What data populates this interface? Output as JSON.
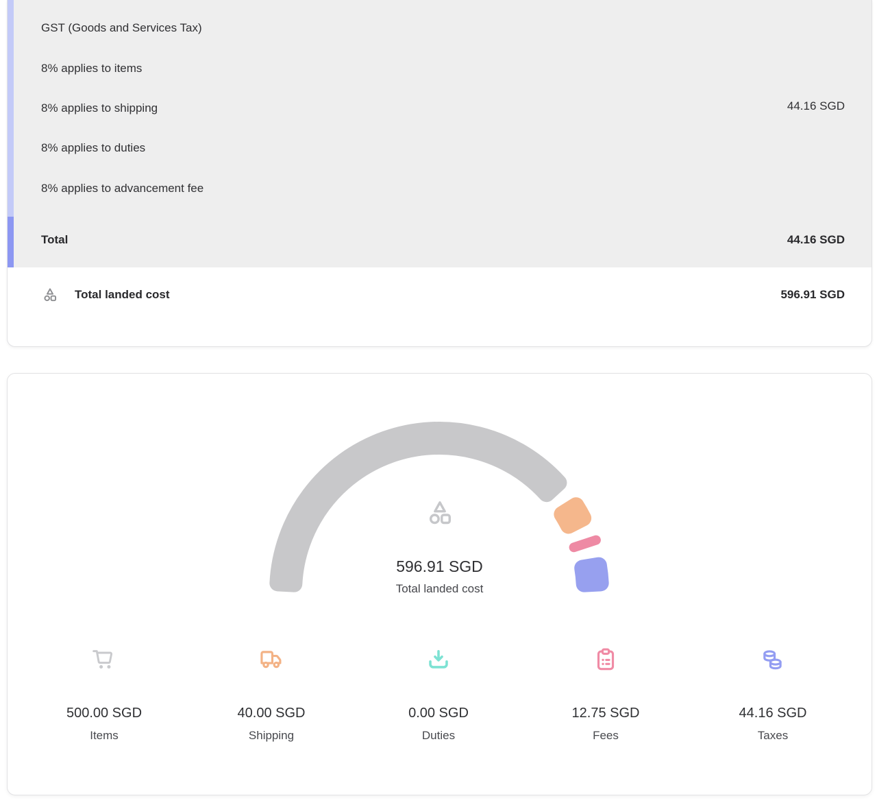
{
  "colors": {
    "section_bg": "#eeeeee",
    "accent_bar_light": "#c3caf8",
    "accent_bar_dark": "#8c97f2",
    "card_border": "#e2e2e4"
  },
  "tax_group": {
    "title": "GST (Goods and Services Tax)",
    "lines": [
      "8% applies to items",
      "8% applies to shipping",
      "8% applies to duties",
      "8% applies to advancement fee"
    ],
    "amount": "44.16 SGD"
  },
  "total_row": {
    "label": "Total",
    "amount": "44.16 SGD"
  },
  "landed_cost_row": {
    "label": "Total landed cost",
    "amount": "596.91 SGD",
    "icon": "shapes-icon"
  },
  "gauge_card": {
    "center": {
      "icon": "shapes-icon",
      "value": "596.91 SGD",
      "label": "Total landed cost"
    },
    "legend": [
      {
        "icon": "cart-icon",
        "value": "500.00 SGD",
        "label": "Items",
        "color": "#c9cacd"
      },
      {
        "icon": "truck-icon",
        "value": "40.00 SGD",
        "label": "Shipping",
        "color": "#f3b285"
      },
      {
        "icon": "tray-download-icon",
        "value": "0.00 SGD",
        "label": "Duties",
        "color": "#7de2d3"
      },
      {
        "icon": "clipboard-icon",
        "value": "12.75 SGD",
        "label": "Fees",
        "color": "#f08ba5"
      },
      {
        "icon": "coins-icon",
        "value": "44.16 SGD",
        "label": "Taxes",
        "color": "#939df2"
      }
    ]
  },
  "chart_data": {
    "type": "pie",
    "variant": "half-donut-gauge",
    "categories": [
      "Items",
      "Shipping",
      "Duties",
      "Fees",
      "Taxes"
    ],
    "values": [
      500.0,
      40.0,
      0.0,
      12.75,
      44.16
    ],
    "unit": "SGD",
    "colors": [
      "#c8c8ca",
      "#f5b78c",
      "#7de2d3",
      "#ee8aa4",
      "#97a0ef"
    ],
    "total_value": 596.91,
    "center_value": "596.91 SGD",
    "center_label": "Total landed cost",
    "start_angle": 180,
    "end_angle": 0,
    "gap_degrees": 4,
    "legend_position": "bottom"
  }
}
